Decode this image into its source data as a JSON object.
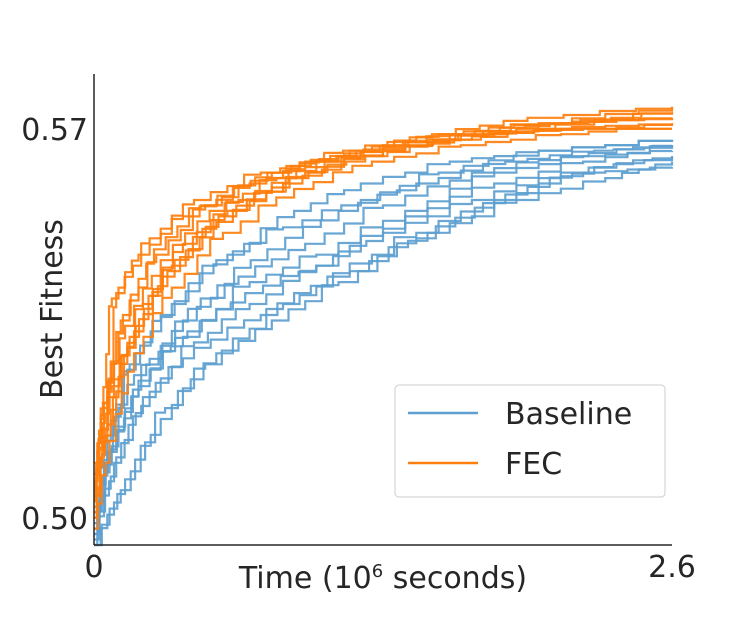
{
  "chart_data": {
    "type": "line",
    "title": "",
    "xlabel_prefix": "Time (10",
    "xlabel_sup": "6",
    "xlabel_suffix": " seconds)",
    "ylabel": "Best Fitness",
    "xlim": [
      0,
      2.6
    ],
    "ylim": [
      0.495,
      0.581
    ],
    "xticks": [
      {
        "value": 0,
        "label": "0"
      },
      {
        "value": 2.6,
        "label": "2.6"
      }
    ],
    "yticks": [
      {
        "value": 0.5,
        "label": "0.50"
      },
      {
        "value": 0.57,
        "label": "0.57"
      }
    ],
    "legend": {
      "placement": "lower-right",
      "entries": [
        {
          "name": "Baseline",
          "color": "#5da0d0"
        },
        {
          "name": "FEC",
          "color": "#ff7f0e"
        }
      ]
    },
    "grid": false,
    "series": [
      {
        "name": "Baseline",
        "color": "#5da0d0",
        "runs": [
          [
            [
              0.0,
              0.495
            ],
            [
              0.06,
              0.515
            ],
            [
              0.18,
              0.526
            ],
            [
              0.4,
              0.533
            ],
            [
              0.7,
              0.543
            ],
            [
              1.0,
              0.548
            ],
            [
              1.4,
              0.556
            ],
            [
              1.8,
              0.563
            ],
            [
              2.2,
              0.566
            ],
            [
              2.6,
              0.567
            ]
          ],
          [
            [
              0.0,
              0.497
            ],
            [
              0.1,
              0.511
            ],
            [
              0.25,
              0.523
            ],
            [
              0.45,
              0.531
            ],
            [
              0.75,
              0.537
            ],
            [
              1.05,
              0.544
            ],
            [
              1.45,
              0.552
            ],
            [
              1.85,
              0.559
            ],
            [
              2.25,
              0.564
            ],
            [
              2.6,
              0.566
            ]
          ],
          [
            [
              0.0,
              0.499
            ],
            [
              0.08,
              0.513
            ],
            [
              0.2,
              0.525
            ],
            [
              0.42,
              0.534
            ],
            [
              0.68,
              0.541
            ],
            [
              1.0,
              0.546
            ],
            [
              1.4,
              0.555
            ],
            [
              1.8,
              0.561
            ],
            [
              2.2,
              0.565
            ],
            [
              2.6,
              0.568
            ]
          ],
          [
            [
              0.0,
              0.495
            ],
            [
              0.12,
              0.505
            ],
            [
              0.3,
              0.518
            ],
            [
              0.5,
              0.528
            ],
            [
              0.8,
              0.536
            ],
            [
              1.1,
              0.543
            ],
            [
              1.45,
              0.551
            ],
            [
              1.8,
              0.558
            ],
            [
              2.2,
              0.563
            ],
            [
              2.6,
              0.564
            ]
          ],
          [
            [
              0.0,
              0.498
            ],
            [
              0.06,
              0.512
            ],
            [
              0.16,
              0.528
            ],
            [
              0.35,
              0.539
            ],
            [
              0.6,
              0.548
            ],
            [
              0.9,
              0.556
            ],
            [
              1.2,
              0.561
            ],
            [
              1.6,
              0.565
            ],
            [
              2.0,
              0.567
            ],
            [
              2.6,
              0.569
            ]
          ],
          [
            [
              0.0,
              0.496
            ],
            [
              0.09,
              0.51
            ],
            [
              0.22,
              0.522
            ],
            [
              0.45,
              0.532
            ],
            [
              0.7,
              0.539
            ],
            [
              1.0,
              0.546
            ],
            [
              1.3,
              0.552
            ],
            [
              1.7,
              0.558
            ],
            [
              2.1,
              0.563
            ],
            [
              2.6,
              0.566
            ]
          ],
          [
            [
              0.0,
              0.501
            ],
            [
              0.05,
              0.514
            ],
            [
              0.15,
              0.527
            ],
            [
              0.3,
              0.537
            ],
            [
              0.55,
              0.547
            ],
            [
              0.85,
              0.553
            ],
            [
              1.2,
              0.558
            ],
            [
              1.55,
              0.563
            ],
            [
              2.0,
              0.567
            ],
            [
              2.6,
              0.569
            ]
          ],
          [
            [
              0.0,
              0.497
            ],
            [
              0.07,
              0.512
            ],
            [
              0.2,
              0.524
            ],
            [
              0.4,
              0.536
            ],
            [
              0.65,
              0.544
            ],
            [
              0.95,
              0.55
            ],
            [
              1.3,
              0.557
            ],
            [
              1.7,
              0.563
            ],
            [
              2.1,
              0.566
            ],
            [
              2.6,
              0.568
            ]
          ],
          [
            [
              0.0,
              0.495
            ],
            [
              0.14,
              0.507
            ],
            [
              0.32,
              0.52
            ],
            [
              0.55,
              0.53
            ],
            [
              0.85,
              0.539
            ],
            [
              1.15,
              0.545
            ],
            [
              1.5,
              0.552
            ],
            [
              1.9,
              0.558
            ],
            [
              2.3,
              0.562
            ],
            [
              2.6,
              0.565
            ]
          ],
          [
            [
              0.0,
              0.5
            ],
            [
              0.1,
              0.516
            ],
            [
              0.25,
              0.529
            ],
            [
              0.48,
              0.54
            ],
            [
              0.78,
              0.549
            ],
            [
              1.1,
              0.556
            ],
            [
              1.45,
              0.561
            ],
            [
              1.85,
              0.565
            ],
            [
              2.25,
              0.567
            ],
            [
              2.6,
              0.568
            ]
          ]
        ]
      },
      {
        "name": "FEC",
        "color": "#ff7f0e",
        "runs": [
          [
            [
              0.0,
              0.503
            ],
            [
              0.03,
              0.518
            ],
            [
              0.08,
              0.54
            ],
            [
              0.2,
              0.548
            ],
            [
              0.4,
              0.555
            ],
            [
              0.7,
              0.561
            ],
            [
              1.0,
              0.565
            ],
            [
              1.4,
              0.568
            ],
            [
              1.9,
              0.571
            ],
            [
              2.6,
              0.574
            ]
          ],
          [
            [
              0.0,
              0.51
            ],
            [
              0.06,
              0.522
            ],
            [
              0.18,
              0.534
            ],
            [
              0.35,
              0.546
            ],
            [
              0.6,
              0.556
            ],
            [
              0.95,
              0.563
            ],
            [
              1.3,
              0.567
            ],
            [
              1.7,
              0.57
            ],
            [
              2.1,
              0.572
            ],
            [
              2.6,
              0.573
            ]
          ],
          [
            [
              0.0,
              0.5
            ],
            [
              0.05,
              0.515
            ],
            [
              0.15,
              0.531
            ],
            [
              0.3,
              0.544
            ],
            [
              0.55,
              0.554
            ],
            [
              0.85,
              0.561
            ],
            [
              1.2,
              0.566
            ],
            [
              1.6,
              0.569
            ],
            [
              2.0,
              0.571
            ],
            [
              2.6,
              0.572
            ]
          ],
          [
            [
              0.0,
              0.505
            ],
            [
              0.04,
              0.52
            ],
            [
              0.12,
              0.536
            ],
            [
              0.28,
              0.548
            ],
            [
              0.5,
              0.557
            ],
            [
              0.8,
              0.563
            ],
            [
              1.15,
              0.567
            ],
            [
              1.55,
              0.57
            ],
            [
              2.0,
              0.572
            ],
            [
              2.6,
              0.575
            ]
          ],
          [
            [
              0.0,
              0.508
            ],
            [
              0.08,
              0.524
            ],
            [
              0.22,
              0.539
            ],
            [
              0.4,
              0.55
            ],
            [
              0.65,
              0.558
            ],
            [
              0.95,
              0.564
            ],
            [
              1.3,
              0.568
            ],
            [
              1.75,
              0.57
            ],
            [
              2.2,
              0.571
            ],
            [
              2.6,
              0.571
            ]
          ],
          [
            [
              0.0,
              0.502
            ],
            [
              0.05,
              0.516
            ],
            [
              0.1,
              0.541
            ],
            [
              0.25,
              0.551
            ],
            [
              0.45,
              0.558
            ],
            [
              0.75,
              0.563
            ],
            [
              1.1,
              0.566
            ],
            [
              1.5,
              0.569
            ],
            [
              2.0,
              0.572
            ],
            [
              2.6,
              0.573
            ]
          ],
          [
            [
              0.0,
              0.498
            ],
            [
              0.07,
              0.514
            ],
            [
              0.18,
              0.53
            ],
            [
              0.35,
              0.542
            ],
            [
              0.58,
              0.552
            ],
            [
              0.9,
              0.56
            ],
            [
              1.25,
              0.565
            ],
            [
              1.65,
              0.568
            ],
            [
              2.1,
              0.57
            ],
            [
              2.6,
              0.572
            ]
          ],
          [
            [
              0.0,
              0.506
            ],
            [
              0.04,
              0.521
            ],
            [
              0.14,
              0.535
            ],
            [
              0.3,
              0.547
            ],
            [
              0.52,
              0.556
            ],
            [
              0.82,
              0.562
            ],
            [
              1.18,
              0.567
            ],
            [
              1.6,
              0.57
            ],
            [
              2.05,
              0.572
            ],
            [
              2.6,
              0.574
            ]
          ],
          [
            [
              0.0,
              0.501
            ],
            [
              0.06,
              0.517
            ],
            [
              0.16,
              0.533
            ],
            [
              0.33,
              0.545
            ],
            [
              0.56,
              0.555
            ],
            [
              0.88,
              0.562
            ],
            [
              1.22,
              0.566
            ],
            [
              1.62,
              0.569
            ],
            [
              2.1,
              0.571
            ],
            [
              2.6,
              0.571
            ]
          ],
          [
            [
              0.0,
              0.504
            ],
            [
              0.05,
              0.519
            ],
            [
              0.13,
              0.537
            ],
            [
              0.27,
              0.549
            ],
            [
              0.48,
              0.557
            ],
            [
              0.78,
              0.563
            ],
            [
              1.12,
              0.567
            ],
            [
              1.52,
              0.57
            ],
            [
              1.95,
              0.573
            ],
            [
              2.6,
              0.575
            ]
          ]
        ]
      }
    ]
  }
}
